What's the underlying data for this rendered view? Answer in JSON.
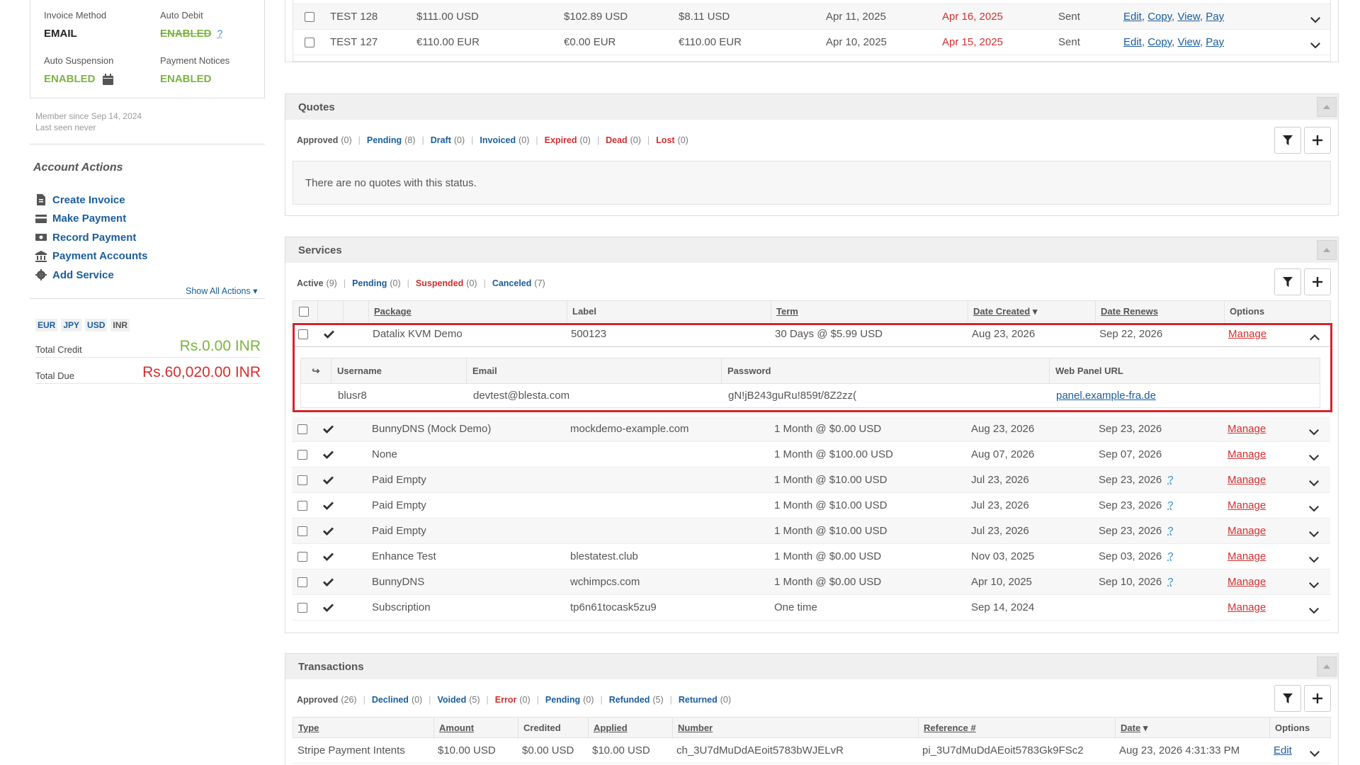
{
  "sidebar": {
    "billing": {
      "invoice_method_label": "Invoice Method",
      "invoice_method_value": "EMAIL",
      "auto_debit_label": "Auto Debit",
      "auto_debit_value": "ENABLED",
      "auto_debit_help": "?",
      "auto_suspension_label": "Auto Suspension",
      "auto_suspension_value": "ENABLED",
      "payment_notices_label": "Payment Notices",
      "payment_notices_value": "ENABLED"
    },
    "member_since": "Member since Sep 14, 2024",
    "last_seen": "Last seen never",
    "account_actions_title": "Account Actions",
    "actions": [
      {
        "label": "Create Invoice",
        "icon": "file-invoice-icon"
      },
      {
        "label": "Make Payment",
        "icon": "credit-card-icon"
      },
      {
        "label": "Record Payment",
        "icon": "money-bill-icon"
      },
      {
        "label": "Payment Accounts",
        "icon": "bank-icon"
      },
      {
        "label": "Add Service",
        "icon": "gear-icon"
      }
    ],
    "show_all_actions": "Show All Actions",
    "currencies": [
      "EUR",
      "JPY",
      "USD",
      "INR"
    ],
    "total_credit_label": "Total Credit",
    "total_credit_value": "Rs.0.00 INR",
    "total_due_label": "Total Due",
    "total_due_value": "Rs.60,020.00 INR"
  },
  "invoices": {
    "rows": [
      {
        "id": "TEST 128",
        "total": "$111.00 USD",
        "paid": "$102.89 USD",
        "due": "$8.11 USD",
        "date_billed": "Apr 11, 2025",
        "date_due": "Apr 16, 2025",
        "status": "Sent"
      },
      {
        "id": "TEST 127",
        "total": "€110.00 EUR",
        "paid": "€0.00 EUR",
        "due": "€110.00 EUR",
        "date_billed": "Apr 10, 2025",
        "date_due": "Apr 15, 2025",
        "status": "Sent"
      }
    ],
    "links": {
      "edit": "Edit",
      "copy": "Copy",
      "view": "View",
      "pay": "Pay"
    }
  },
  "quotes": {
    "title": "Quotes",
    "filters": [
      {
        "label": "Approved",
        "count": "(0)",
        "tone": "default"
      },
      {
        "label": "Pending",
        "count": "(8)",
        "tone": "blue"
      },
      {
        "label": "Draft",
        "count": "(0)",
        "tone": "blue"
      },
      {
        "label": "Invoiced",
        "count": "(0)",
        "tone": "blue"
      },
      {
        "label": "Expired",
        "count": "(0)",
        "tone": "red"
      },
      {
        "label": "Dead",
        "count": "(0)",
        "tone": "red"
      },
      {
        "label": "Lost",
        "count": "(0)",
        "tone": "red"
      }
    ],
    "empty_message": "There are no quotes with this status."
  },
  "services": {
    "title": "Services",
    "filters": [
      {
        "label": "Active",
        "count": "(9)",
        "tone": "default"
      },
      {
        "label": "Pending",
        "count": "(0)",
        "tone": "blue"
      },
      {
        "label": "Suspended",
        "count": "(0)",
        "tone": "red"
      },
      {
        "label": "Canceled",
        "count": "(7)",
        "tone": "blue"
      }
    ],
    "columns": {
      "package": "Package",
      "label": "Label",
      "term": "Term",
      "date_created": "Date Created",
      "date_renews": "Date Renews",
      "options": "Options"
    },
    "manage_label": "Manage",
    "help_mark": "?",
    "expanded": {
      "package": "Datalix KVM Demo",
      "label": "500123",
      "term": "30 Days @ $5.99 USD",
      "created": "Aug 23, 2026",
      "renews": "Sep 22, 2026",
      "columns": {
        "username": "Username",
        "email": "Email",
        "password": "Password",
        "url": "Web Panel URL"
      },
      "username": "blusr8",
      "email": "devtest@blesta.com",
      "password": "gN!jB243guRu!859t/8Z2zz(",
      "url": "panel.example-fra.de"
    },
    "rows": [
      {
        "package": "BunnyDNS (Mock Demo)",
        "label": "mockdemo-example.com",
        "term": "1 Month @ $0.00 USD",
        "created": "Aug 23, 2026",
        "renews": "Sep 23, 2026",
        "help": false
      },
      {
        "package": "None",
        "label": "",
        "term": "1 Month @ $100.00 USD",
        "created": "Aug 07, 2026",
        "renews": "Sep 07, 2026",
        "help": false
      },
      {
        "package": "Paid Empty",
        "label": "",
        "term": "1 Month @ $10.00 USD",
        "created": "Jul 23, 2026",
        "renews": "Sep 23, 2026",
        "help": true
      },
      {
        "package": "Paid Empty",
        "label": "",
        "term": "1 Month @ $10.00 USD",
        "created": "Jul 23, 2026",
        "renews": "Sep 23, 2026",
        "help": true
      },
      {
        "package": "Paid Empty",
        "label": "",
        "term": "1 Month @ $10.00 USD",
        "created": "Jul 23, 2026",
        "renews": "Sep 23, 2026",
        "help": true
      },
      {
        "package": "Enhance Test",
        "label": "blestatest.club",
        "term": "1 Month @ $0.00 USD",
        "created": "Nov 03, 2025",
        "renews": "Sep 03, 2026",
        "help": true
      },
      {
        "package": "BunnyDNS",
        "label": "wchimpcs.com",
        "term": "1 Month @ $0.00 USD",
        "created": "Apr 10, 2025",
        "renews": "Sep 10, 2026",
        "help": true
      },
      {
        "package": "Subscription",
        "label": "tp6n61tocask5zu9",
        "term": "One time",
        "created": "Sep 14, 2024",
        "renews": "",
        "help": false
      }
    ]
  },
  "transactions": {
    "title": "Transactions",
    "filters": [
      {
        "label": "Approved",
        "count": "(26)",
        "tone": "default"
      },
      {
        "label": "Declined",
        "count": "(0)",
        "tone": "blue"
      },
      {
        "label": "Voided",
        "count": "(5)",
        "tone": "blue"
      },
      {
        "label": "Error",
        "count": "(0)",
        "tone": "red"
      },
      {
        "label": "Pending",
        "count": "(0)",
        "tone": "blue"
      },
      {
        "label": "Refunded",
        "count": "(5)",
        "tone": "blue"
      },
      {
        "label": "Returned",
        "count": "(0)",
        "tone": "blue"
      }
    ],
    "columns": {
      "type": "Type",
      "amount": "Amount",
      "credited": "Credited",
      "applied": "Applied",
      "number": "Number",
      "reference": "Reference #",
      "date": "Date",
      "options": "Options"
    },
    "rows": [
      {
        "type": "Stripe Payment Intents",
        "amount": "$10.00 USD",
        "credited": "$0.00 USD",
        "applied": "$10.00 USD",
        "number": "ch_3U7dMuDdAEoit5783bWJELvR",
        "reference": "pi_3U7dMuDdAEoit5783Gk9FSc2",
        "date": "Aug 23, 2026 4:31:33 PM",
        "edit": "Edit"
      }
    ]
  }
}
